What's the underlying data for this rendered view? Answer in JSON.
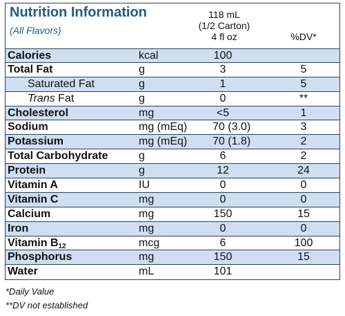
{
  "title": "Nutrition Information",
  "subtitle": "(All Flavors)",
  "header": {
    "serving_line1": "118 mL",
    "serving_line2": "(1/2 Carton)",
    "serving_line3": "4 fl oz",
    "dv_label": "%DV*"
  },
  "rows": [
    {
      "name": "Calories",
      "unit": "kcal",
      "amount": "100",
      "dv": ""
    },
    {
      "name": "Total Fat",
      "unit": "g",
      "amount": "3",
      "dv": "5"
    },
    {
      "name": "Saturated Fat",
      "unit": "g",
      "amount": "1",
      "dv": "5"
    },
    {
      "name_italic": "Trans",
      "name_rest": " Fat",
      "unit": "g",
      "amount": "0",
      "dv": "**"
    },
    {
      "name": "Cholesterol",
      "unit": "mg",
      "amount": "<5",
      "dv": "1"
    },
    {
      "name": "Sodium",
      "unit": "mg (mEq)",
      "amount": "70 (3.0)",
      "dv": "3"
    },
    {
      "name": "Potassium",
      "unit": "mg (mEq)",
      "amount": "70 (1.8)",
      "dv": "2"
    },
    {
      "name": "Total Carbohydrate",
      "unit": "g",
      "amount": "6",
      "dv": "2"
    },
    {
      "name": "Protein",
      "unit": "g",
      "amount": "12",
      "dv": "24"
    },
    {
      "name": "Vitamin A",
      "unit": "IU",
      "amount": "0",
      "dv": "0"
    },
    {
      "name": "Vitamin C",
      "unit": "mg",
      "amount": "0",
      "dv": "0"
    },
    {
      "name": "Calcium",
      "unit": "mg",
      "amount": "150",
      "dv": "15"
    },
    {
      "name": "Iron",
      "unit": "mg",
      "amount": "0",
      "dv": "0"
    },
    {
      "name": "Vitamin B",
      "name_sub": "12",
      "unit": "mcg",
      "amount": "6",
      "dv": "100"
    },
    {
      "name": "Phosphorus",
      "unit": "mg",
      "amount": "150",
      "dv": "15"
    },
    {
      "name": "Water",
      "unit": "mL",
      "amount": "101",
      "dv": ""
    }
  ],
  "footnotes": {
    "daily_value": "*Daily Value",
    "dv_not_established": "**DV not established"
  },
  "colors": {
    "title": "#1f5d83",
    "row_shade": "#cfdff1",
    "border": "#2a3f5a"
  }
}
